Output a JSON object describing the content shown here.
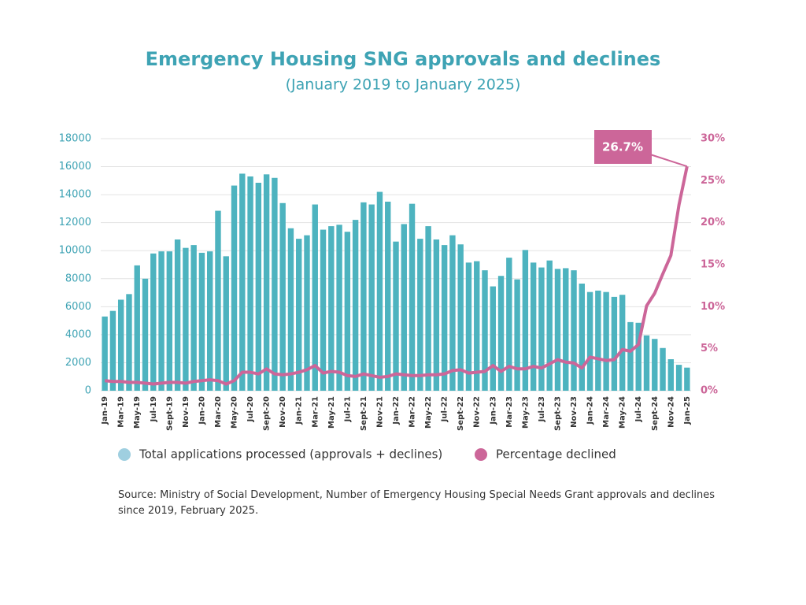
{
  "chart_data": {
    "type": "bar_line",
    "title": "Emergency Housing SNG approvals and declines",
    "subtitle": "(January 2019 to January 2025)",
    "source": "Source: Ministry of Social Development, Number of Emergency Housing Special Needs Grant approvals and declines since 2019, February 2025.",
    "categories": [
      "Jan-19",
      null,
      "Mar-19",
      null,
      "May-19",
      null,
      "Jul-19",
      null,
      "Sept-19",
      null,
      "Nov-19",
      null,
      "Jan-20",
      null,
      "Mar-20",
      null,
      "May-20",
      null,
      "Jul-20",
      null,
      "Sept-20",
      null,
      "Nov-20",
      null,
      "Jan-21",
      null,
      "Mar-21",
      null,
      "May-21",
      null,
      "Jul-21",
      null,
      "Sept-21",
      null,
      "Nov-21",
      null,
      "Jan-22",
      null,
      "Mar-22",
      null,
      "May-22",
      null,
      "Jul-22",
      null,
      "Sept-22",
      null,
      "Nov-22",
      null,
      "Jan-23",
      null,
      "Mar-23",
      null,
      "May-23",
      null,
      "Jul-23",
      null,
      "Sept-23",
      null,
      "Nov-23",
      null,
      "Jan-24",
      null,
      "Mar-24",
      null,
      "May-24",
      null,
      "Jul-24",
      null,
      "Sept-24",
      null,
      "Nov-24",
      null,
      "Jan-25"
    ],
    "series": [
      {
        "name": "Total applications processed (approvals + declines)",
        "type": "bar",
        "color": "#4db3bf",
        "marker_color": "#9fcfe0",
        "values": [
          5300,
          5700,
          6500,
          6900,
          8950,
          8000,
          9800,
          9950,
          9950,
          10800,
          10200,
          10400,
          9850,
          9950,
          12850,
          9600,
          14650,
          15500,
          15300,
          14850,
          15450,
          15200,
          13400,
          11600,
          10850,
          11100,
          13300,
          11500,
          11750,
          11850,
          11350,
          12200,
          13450,
          13300,
          14200,
          13500,
          10650,
          11900,
          13350,
          10850,
          11750,
          10800,
          10400,
          11100,
          10450,
          9150,
          9250,
          8600,
          7450,
          8200,
          9500,
          7950,
          10050,
          9150,
          8800,
          9300,
          8700,
          8750,
          8600,
          7650,
          7050,
          7150,
          7050,
          6700,
          6850,
          4900,
          4850,
          3950,
          3700,
          3050,
          2250,
          1850,
          1650
        ]
      },
      {
        "name": "Percentage declined",
        "type": "line",
        "axis": "y2",
        "color": "#cc6699",
        "marker_color": "#cc6699",
        "values": [
          1.2,
          1.1,
          1.1,
          1.0,
          1.0,
          0.9,
          0.8,
          0.9,
          1.0,
          1.0,
          0.9,
          1.1,
          1.2,
          1.3,
          1.2,
          0.8,
          1.2,
          2.2,
          2.2,
          2.0,
          2.6,
          2.0,
          1.9,
          2.0,
          2.2,
          2.5,
          3.0,
          2.1,
          2.3,
          2.2,
          1.8,
          1.7,
          2.0,
          1.8,
          1.6,
          1.7,
          2.0,
          1.9,
          1.8,
          1.8,
          1.9,
          1.9,
          2.0,
          2.4,
          2.5,
          2.1,
          2.2,
          2.3,
          3.0,
          2.3,
          2.9,
          2.6,
          2.6,
          2.9,
          2.7,
          3.2,
          3.7,
          3.4,
          3.3,
          2.7,
          4.0,
          3.8,
          3.6,
          3.7,
          4.9,
          4.7,
          5.5,
          10.1,
          11.6,
          13.9,
          16.1,
          22.1,
          26.7
        ],
        "value_labels": [
          null,
          null,
          null,
          null,
          null,
          null,
          null,
          null,
          null,
          null,
          null,
          null,
          null,
          null,
          null,
          null,
          null,
          null,
          null,
          null,
          null,
          null,
          null,
          null,
          null,
          null,
          null,
          null,
          null,
          null,
          null,
          null,
          null,
          null,
          null,
          null,
          null,
          null,
          null,
          null,
          null,
          null,
          null,
          null,
          null,
          null,
          null,
          null,
          null,
          null,
          null,
          null,
          null,
          null,
          null,
          null,
          null,
          null,
          null,
          null,
          null,
          null,
          null,
          null,
          null,
          null,
          null,
          null,
          null,
          null,
          null,
          null,
          "26.7%"
        ]
      }
    ],
    "ylim": [
      0,
      18000
    ],
    "yticks": [
      0,
      2000,
      4000,
      6000,
      8000,
      10000,
      12000,
      14000,
      16000,
      18000
    ],
    "y2lim": [
      0,
      30
    ],
    "y2ticks": [
      {
        "value": 0,
        "label": "0%"
      },
      {
        "value": 5,
        "label": "5%"
      },
      {
        "value": 10,
        "label": "10%"
      },
      {
        "value": 15,
        "label": "15%"
      },
      {
        "value": 20,
        "label": "20%"
      },
      {
        "value": 25,
        "label": "25%"
      },
      {
        "value": 30,
        "label": "30%"
      }
    ],
    "grid": true
  }
}
